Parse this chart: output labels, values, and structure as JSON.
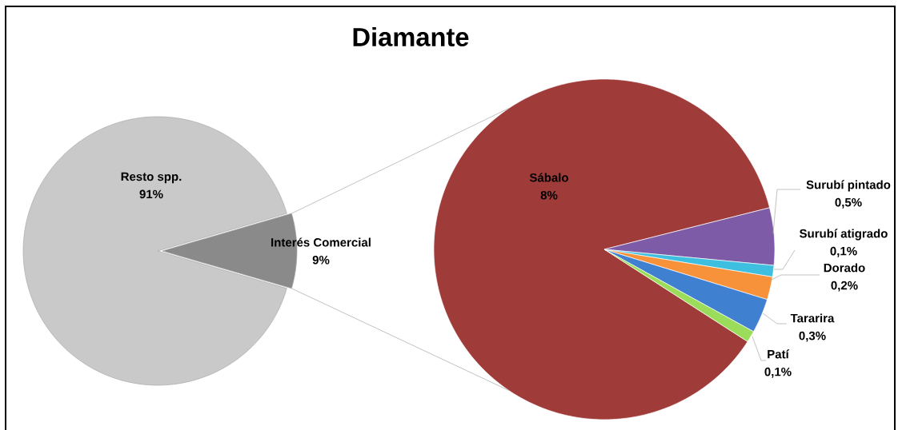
{
  "chart_data": [
    {
      "type": "pie",
      "title": "Diamante",
      "categories": [
        "Resto spp.",
        "Interés Comercial"
      ],
      "values": [
        91,
        9
      ],
      "value_labels": [
        "91%",
        "9%"
      ],
      "colors": [
        "#c9c9c9",
        "#8a8a8a"
      ]
    },
    {
      "type": "pie",
      "categories": [
        "Sábalo",
        "Surubí pintado",
        "Surubí atigrado",
        "Dorado",
        "Tararira",
        "Patí"
      ],
      "values": [
        8,
        0.5,
        0.1,
        0.2,
        0.3,
        0.1
      ],
      "value_labels": [
        "8%",
        "0,5%",
        "0,1%",
        "0,2%",
        "0,3%",
        "0,1%"
      ],
      "colors": [
        "#9f3b39",
        "#7d5ba6",
        "#3fbfe0",
        "#f7923a",
        "#3f80d0",
        "#9bdd5a"
      ]
    }
  ]
}
